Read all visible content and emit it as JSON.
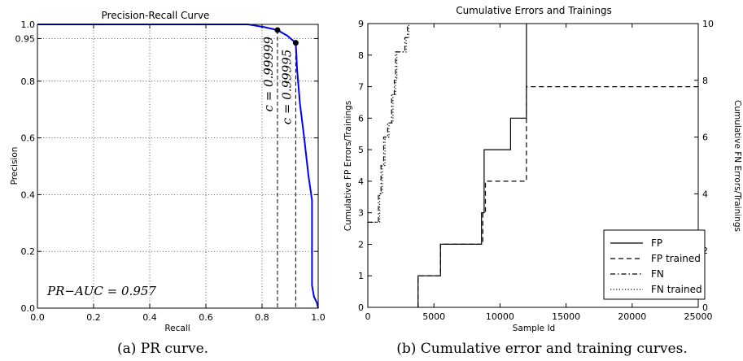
{
  "chart_data": [
    {
      "type": "line",
      "title": "Precision-Recall Curve",
      "xlabel": "Recall",
      "ylabel": "Precision",
      "xlim": [
        0.0,
        1.0
      ],
      "ylim": [
        0.0,
        1.0
      ],
      "grid": true,
      "x_ticks": [
        "0.0",
        "0.2",
        "0.4",
        "0.6",
        "0.8",
        "1.0"
      ],
      "y_ticks": [
        "0.0",
        "0.2",
        "0.4",
        "0.6",
        "0.8",
        "0.95",
        "1.0"
      ],
      "series": [
        {
          "x": [
            0.0,
            0.75,
            0.81,
            0.855,
            0.89,
            0.92,
            0.925,
            0.935,
            0.95,
            0.965,
            0.978,
            0.978,
            0.985,
            0.995,
            1.0
          ],
          "y": [
            1.0,
            1.0,
            0.99,
            0.98,
            0.96,
            0.935,
            0.84,
            0.72,
            0.6,
            0.47,
            0.38,
            0.08,
            0.04,
            0.02,
            0.0
          ],
          "color": "#0000ff"
        }
      ],
      "markers": [
        {
          "x": 0.855,
          "y": 0.98,
          "label": "c = 0.99999"
        },
        {
          "x": 0.92,
          "y": 0.935,
          "label": "c = 0.99995"
        }
      ],
      "annotation": "PR−AUC = 0.957",
      "caption": "(a) PR curve."
    },
    {
      "type": "line",
      "title": "Cumulative Errors and Trainings",
      "xlabel": "Sample Id",
      "ylabel_left": "Cumulative FP Errors/Trainings",
      "ylabel_right": "Cumulative FN Errors/Trainings",
      "xlim": [
        0,
        25000
      ],
      "ylim_left": [
        0,
        9
      ],
      "ylim_right": [
        0,
        10
      ],
      "grid": false,
      "x_ticks": [
        "0",
        "5000",
        "10000",
        "15000",
        "20000",
        "25000"
      ],
      "y_ticks_left": [
        "0",
        "1",
        "2",
        "3",
        "4",
        "5",
        "6",
        "7",
        "8",
        "9"
      ],
      "y_ticks_right": [
        "0",
        "2",
        "4",
        "6",
        "8",
        "10"
      ],
      "legend_position": "bottom-right",
      "series": [
        {
          "name": "FP",
          "axis": "left",
          "style": "solid",
          "x": [
            3800,
            3800,
            5500,
            5500,
            8600,
            8600,
            8800,
            8800,
            10800,
            10800,
            12000,
            12000
          ],
          "y": [
            0,
            1,
            1,
            2,
            2,
            3,
            3,
            5,
            5,
            6,
            6,
            9
          ]
        },
        {
          "name": "FP trained",
          "axis": "left",
          "style": "dashed",
          "x": [
            3800,
            3800,
            5500,
            5500,
            8700,
            8700,
            8900,
            8900,
            12000,
            12000,
            25000
          ],
          "y": [
            0,
            1,
            1,
            2,
            2,
            3,
            3,
            4,
            4,
            7,
            7
          ]
        },
        {
          "name": "FN",
          "axis": "right",
          "style": "dashdot",
          "x": [
            0,
            800,
            800,
            1000,
            1000,
            1200,
            1200,
            1500,
            1500,
            1800,
            1800,
            2000,
            2000,
            2100,
            2100,
            2800,
            2800,
            3000,
            3000
          ],
          "y": [
            3.0,
            3.0,
            4.0,
            4.0,
            5.0,
            5.0,
            6.0,
            6.0,
            6.5,
            6.5,
            7.5,
            7.5,
            8.0,
            8.0,
            9.0,
            9.0,
            9.5,
            9.5,
            10.0
          ]
        },
        {
          "name": "FN trained",
          "axis": "right",
          "style": "dotted",
          "x": [
            0,
            900,
            900,
            1100,
            1100,
            1300,
            1300,
            1600,
            1600,
            1900,
            1900,
            2100,
            2100,
            2200,
            2200,
            2900,
            2900,
            3100,
            3100
          ],
          "y": [
            3.0,
            3.0,
            4.0,
            4.0,
            5.0,
            5.0,
            6.0,
            6.0,
            6.5,
            6.5,
            7.5,
            7.5,
            8.0,
            8.0,
            9.0,
            9.0,
            9.5,
            9.5,
            10.0
          ]
        }
      ],
      "caption": "(b) Cumulative error and training curves."
    }
  ]
}
